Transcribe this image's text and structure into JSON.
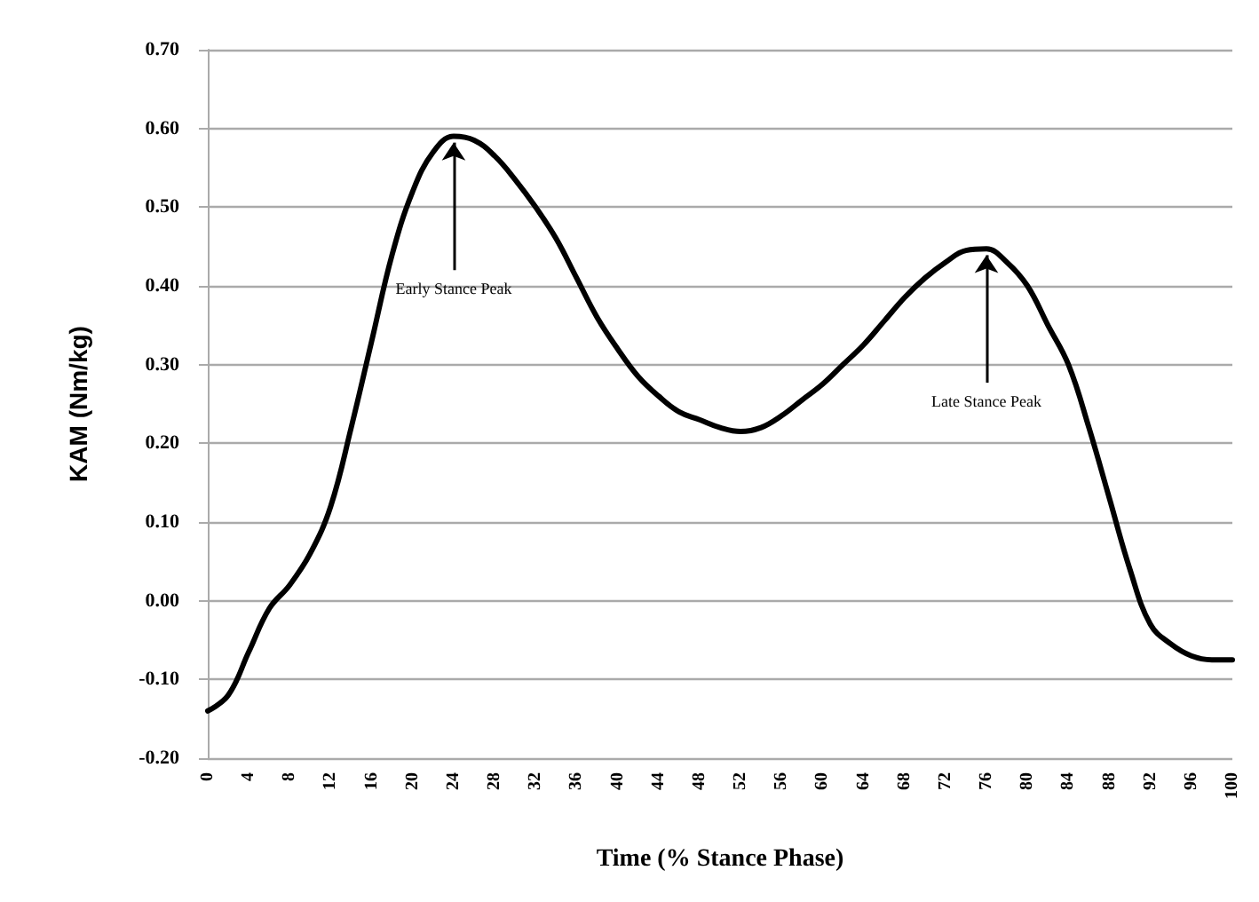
{
  "chart_data": {
    "type": "line",
    "xlabel": "Time (% Stance Phase)",
    "ylabel": "KAM (Nm/kg)",
    "x": [
      0,
      2,
      4,
      6,
      8,
      10,
      12,
      14,
      16,
      18,
      20,
      22,
      24,
      26,
      28,
      30,
      32,
      34,
      36,
      38,
      40,
      42,
      44,
      46,
      48,
      50,
      52,
      54,
      56,
      58,
      60,
      62,
      64,
      66,
      68,
      70,
      72,
      74,
      76,
      78,
      80,
      82,
      84,
      86,
      88,
      90,
      92,
      94,
      96,
      98,
      100
    ],
    "series": [
      {
        "color": "#000000",
        "values": [
          -0.14,
          -0.12,
          -0.065,
          -0.01,
          0.02,
          0.06,
          0.12,
          0.22,
          0.33,
          0.44,
          0.52,
          0.57,
          0.59,
          0.585,
          0.565,
          0.535,
          0.5,
          0.46,
          0.41,
          0.36,
          0.32,
          0.285,
          0.26,
          0.24,
          0.23,
          0.22,
          0.215,
          0.22,
          0.235,
          0.255,
          0.275,
          0.3,
          0.325,
          0.355,
          0.385,
          0.41,
          0.43,
          0.445,
          0.447,
          0.43,
          0.4,
          0.35,
          0.3,
          0.22,
          0.13,
          0.04,
          -0.03,
          -0.055,
          -0.07,
          -0.075,
          -0.075
        ]
      }
    ],
    "xlim": [
      0,
      100
    ],
    "xticks": [
      0,
      4,
      8,
      12,
      16,
      20,
      24,
      28,
      32,
      36,
      40,
      44,
      48,
      52,
      56,
      60,
      64,
      68,
      72,
      76,
      80,
      84,
      88,
      92,
      96,
      100
    ],
    "ylim": [
      -0.2,
      0.7
    ],
    "yticks": [
      {
        "value": -0.2,
        "label": "-0.20"
      },
      {
        "value": -0.1,
        "label": "-0.10"
      },
      {
        "value": 0,
        "label": "0.00"
      },
      {
        "value": 0.1,
        "label": "0.10"
      },
      {
        "value": 0.2,
        "label": "0.20"
      },
      {
        "value": 0.3,
        "label": "0.30"
      },
      {
        "value": 0.4,
        "label": "0.40"
      },
      {
        "value": 0.5,
        "label": "0.50"
      },
      {
        "value": 0.6,
        "label": "0.60"
      },
      {
        "value": 0.7,
        "label": "0.70"
      }
    ],
    "annotations": [
      {
        "text": "Early Stance Peak",
        "x": 24,
        "y": 0.59
      },
      {
        "text": "Late Stance Peak",
        "x": 76,
        "y": 0.447
      }
    ],
    "grid": "y",
    "marker": "none",
    "line_style": "solid"
  }
}
